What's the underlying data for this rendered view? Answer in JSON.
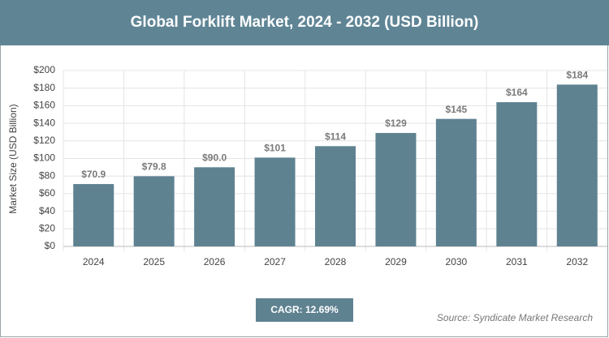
{
  "chart_data": {
    "type": "bar",
    "title": "Global Forklift Market, 2024 - 2032 (USD Billion)",
    "y_label": "Market Size (USD Billion)",
    "categories": [
      "2024",
      "2025",
      "2026",
      "2027",
      "2028",
      "2029",
      "2030",
      "2031",
      "2032"
    ],
    "values": [
      70.9,
      79.8,
      90.0,
      101,
      114,
      129,
      145,
      164,
      184
    ],
    "value_labels": [
      "$70.9",
      "$79.8",
      "$90.0",
      "$101",
      "$114",
      "$129",
      "$145",
      "$164",
      "$184"
    ],
    "color": "#5f8291",
    "ylim": [
      0,
      200
    ],
    "yticks": [
      {
        "value": 0,
        "label": "$0"
      },
      {
        "value": 20,
        "label": "$20"
      },
      {
        "value": 40,
        "label": "$40"
      },
      {
        "value": 60,
        "label": "$60"
      },
      {
        "value": 80,
        "label": "$80"
      },
      {
        "value": 100,
        "label": "$100"
      },
      {
        "value": 120,
        "label": "$120"
      },
      {
        "value": 140,
        "label": "$140"
      },
      {
        "value": 160,
        "label": "$160"
      },
      {
        "value": 180,
        "label": "$180"
      },
      {
        "value": 200,
        "label": "$200"
      }
    ],
    "grid": true,
    "cagr": "CAGR: 12.69%",
    "source": "Source: Syndicate Market Research"
  }
}
